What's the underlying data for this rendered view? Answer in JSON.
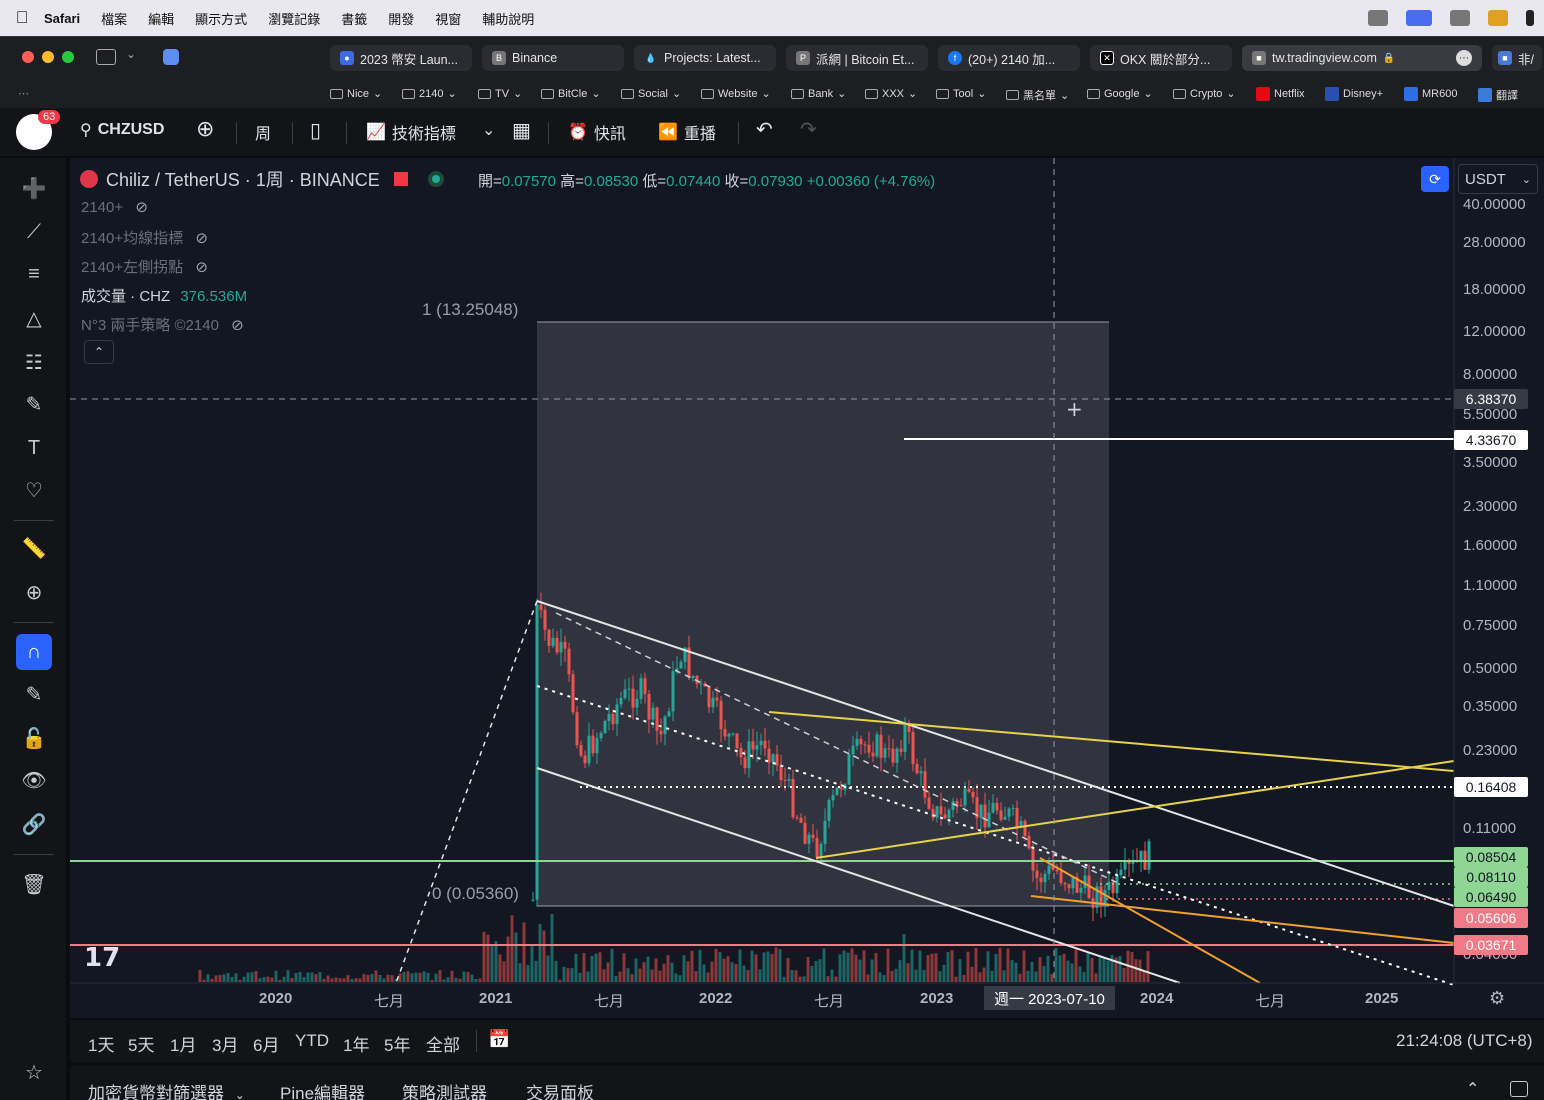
{
  "menubar": {
    "app": "Safari",
    "items": [
      "檔案",
      "編輯",
      "顯示方式",
      "瀏覽記錄",
      "書籤",
      "開發",
      "視窗",
      "輔助說明"
    ]
  },
  "tabs": [
    {
      "label": "2023 幣安 Laun...",
      "icon": "binance-academy-icon"
    },
    {
      "label": "Binance",
      "icon": "binance-icon"
    },
    {
      "label": "Projects: Latest...",
      "icon": "drop-icon"
    },
    {
      "label": "派網 | Bitcoin Et...",
      "icon": "pionex-icon"
    },
    {
      "label": "(20+) 2140 加...",
      "icon": "facebook-icon"
    },
    {
      "label": "OKX 關於部分...",
      "icon": "okx-icon"
    },
    {
      "label": "tw.tradingview.com",
      "icon": "lock-icon"
    }
  ],
  "tab_overflow": "非/",
  "bookmarks": [
    "Nice",
    "2140",
    "TV",
    "BitCle",
    "Social",
    "Website",
    "Bank",
    "XXX",
    "Tool",
    "黑名單",
    "Google",
    "Crypto",
    "Netflix",
    "Disney+",
    "MR600",
    "翻譯"
  ],
  "toolbar": {
    "notifications": "63",
    "symbol": "CHZUSD",
    "interval": "周",
    "indicators": "技術指標",
    "alerts": "快訊",
    "replay": "重播"
  },
  "legend": {
    "title": "Chiliz / TetherUS · 1周 · BINANCE",
    "open_label": "開=",
    "open": "0.07570",
    "high_label": "高=",
    "high": "0.08530",
    "low_label": "低=",
    "low": "0.07440",
    "close_label": "收=",
    "close": "0.07930",
    "change": "+0.00360 (+4.76%)",
    "indicators": [
      {
        "name": "2140+",
        "visible": false
      },
      {
        "name": "2140+均線指標",
        "visible": false
      },
      {
        "name": "2140+左側拐點",
        "visible": false
      },
      {
        "name": "成交量 · CHZ",
        "value": "376.536M",
        "visible": true
      },
      {
        "name": "N°3 兩手策略 ©2140",
        "visible": false
      }
    ]
  },
  "currency": "USDT",
  "fib_labels": {
    "top": "1 (13.25048)",
    "bottom": "0 (0.05360)"
  },
  "price_axis": [
    "40.00000",
    "28.00000",
    "18.00000",
    "12.00000",
    "8.00000",
    "5.50000",
    "3.50000",
    "2.30000",
    "1.60000",
    "1.10000",
    "0.75000",
    "0.50000",
    "0.35000",
    "0.23000",
    "0.11000",
    "0.04000"
  ],
  "price_tags": [
    {
      "value": "6.38370",
      "style": "crosshair"
    },
    {
      "value": "4.33670",
      "style": "white"
    },
    {
      "value": "0.16408",
      "style": "white"
    },
    {
      "value": "0.08504",
      "style": "green"
    },
    {
      "value": "0.08110",
      "style": "green"
    },
    {
      "value": "0.06490",
      "style": "green"
    },
    {
      "value": "0.05606",
      "style": "red"
    },
    {
      "value": "0.03671",
      "style": "red"
    }
  ],
  "time_axis": [
    "2020",
    "七月",
    "2021",
    "七月",
    "2022",
    "七月",
    "2023",
    "2024",
    "七月",
    "2025"
  ],
  "crosshair_date": "週一 2023-07-10",
  "ranges": [
    "1天",
    "5天",
    "1月",
    "3月",
    "6月",
    "YTD",
    "1年",
    "5年",
    "全部"
  ],
  "clock": "21:24:08 (UTC+8)",
  "panels": [
    "加密貨幣對篩選器",
    "Pine編輯器",
    "策略測試器",
    "交易面板"
  ],
  "colors": {
    "up": "#26a69a",
    "down": "#ef5350",
    "accent": "#2962ff",
    "yellow": "#e6d34a",
    "orange": "#f0a030",
    "green_line": "#8fd694",
    "red_line": "#f07a86"
  }
}
